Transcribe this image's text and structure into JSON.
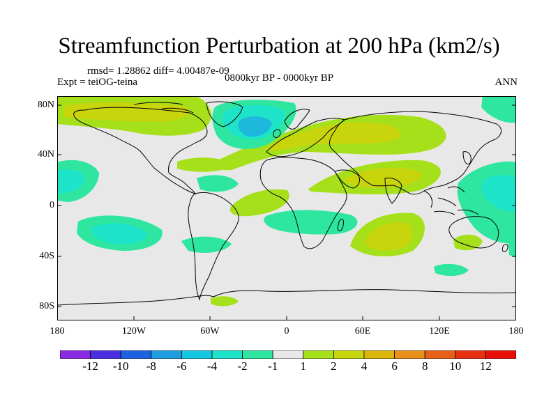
{
  "title": "Streamfunction Perturbation at 200 hPa (km2/s)",
  "stats": "rmsd= 1.28862 diff= 4.00487e-09",
  "experiment": "Expt = teiOG-teina",
  "period": "0800kyr BP - 0000kyr BP",
  "season": "ANN",
  "lat_labels": [
    "80N",
    "40N",
    "0",
    "40S",
    "80S"
  ],
  "lon_labels": [
    "180",
    "120W",
    "60W",
    "0",
    "60E",
    "120E",
    "180"
  ],
  "colorbar": {
    "labels": [
      "-12",
      "-10",
      "-8",
      "-6",
      "-4",
      "-2",
      "-1",
      "1",
      "2",
      "4",
      "6",
      "8",
      "10",
      "12"
    ],
    "colors": [
      "#8a2be2",
      "#4b2ee0",
      "#1b62e0",
      "#1e9de0",
      "#14c6e0",
      "#1de3c8",
      "#2ee6a0",
      "#e8e8e8",
      "#a6e01a",
      "#c8d40c",
      "#dcb60a",
      "#e8901a",
      "#e86018",
      "#e83010",
      "#e81008"
    ]
  },
  "palette": {
    "neutral": "#e8e8e8",
    "pos_weak": "#a6e01a",
    "pos_mid": "#c8d40c",
    "neg_weak": "#2ee6a0",
    "neg_mid": "#1de3c8",
    "neg_strong": "#1eb8dc"
  }
}
